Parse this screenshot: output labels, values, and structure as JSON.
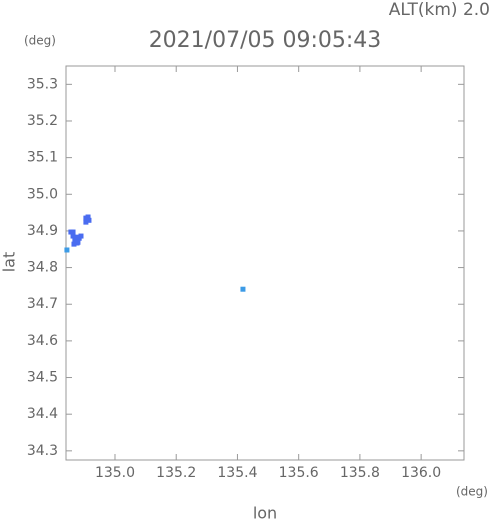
{
  "chart_data": {
    "type": "scatter",
    "title": "2021/07/05 09:05:43",
    "subtitle": "ALT(km) 2.0",
    "x_label": "lon",
    "y_label": "lat",
    "x_unit": "(deg)",
    "y_unit": "(deg)",
    "series": [
      {
        "color": "#4a6cf0",
        "x": [
          134.856,
          134.863,
          134.869,
          134.876,
          134.883,
          134.889,
          134.873,
          134.863,
          134.879,
          134.866,
          134.905,
          134.912,
          134.905,
          134.915
        ],
        "y": [
          34.897,
          34.886,
          34.875,
          34.867,
          34.88,
          34.886,
          34.883,
          34.897,
          34.869,
          34.864,
          34.935,
          34.938,
          34.924,
          34.929
        ]
      },
      {
        "color": "#3c9be6",
        "x": [
          134.843,
          135.418
        ],
        "y": [
          34.848,
          34.741
        ]
      }
    ],
    "xlim": [
      134.84,
      136.14
    ],
    "ylim": [
      34.275,
      35.35
    ],
    "xticks": [
      {
        "value": 135.0,
        "label": "135.0"
      },
      135.2,
      135.4,
      135.6,
      135.8,
      {
        "value": 136.0,
        "label": "136.0"
      }
    ],
    "yticks": [
      34.3,
      34.4,
      34.5,
      34.6,
      34.7,
      34.8,
      34.9,
      {
        "value": 35.0,
        "label": "35.0"
      },
      35.1,
      35.2,
      35.3
    ]
  }
}
